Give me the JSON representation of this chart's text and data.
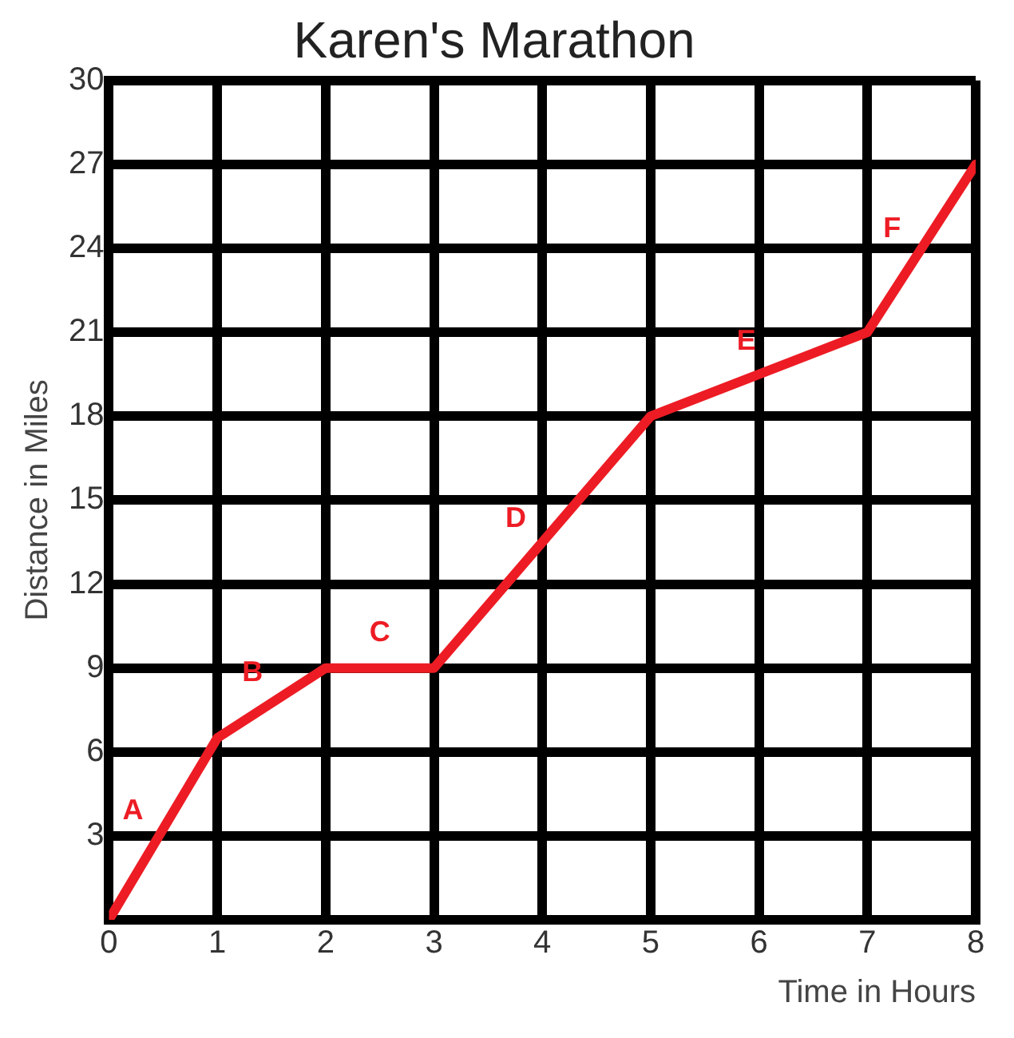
{
  "chart_data": {
    "type": "line",
    "title": "Karen's Marathon",
    "xlabel": "Time in Hours",
    "ylabel": "Distance in Miles",
    "x": [
      0,
      1,
      2,
      3,
      5,
      7,
      8
    ],
    "series": [
      {
        "color": "#ed1c24",
        "values": [
          0,
          6.5,
          9,
          9,
          18,
          21,
          27
        ]
      }
    ],
    "xlim": [
      0,
      8
    ],
    "xticks": [
      0,
      1,
      2,
      3,
      4,
      5,
      6,
      7,
      8
    ],
    "ylim": [
      0,
      30
    ],
    "yticks": [
      {
        "value": 0,
        "label": null
      },
      3,
      6,
      9,
      12,
      15,
      18,
      21,
      24,
      27,
      30
    ],
    "grid": true,
    "legend": false,
    "marker": "none",
    "line_style": "solid",
    "annotations": [
      "A",
      "B",
      "C",
      "D",
      "E",
      "F"
    ]
  }
}
